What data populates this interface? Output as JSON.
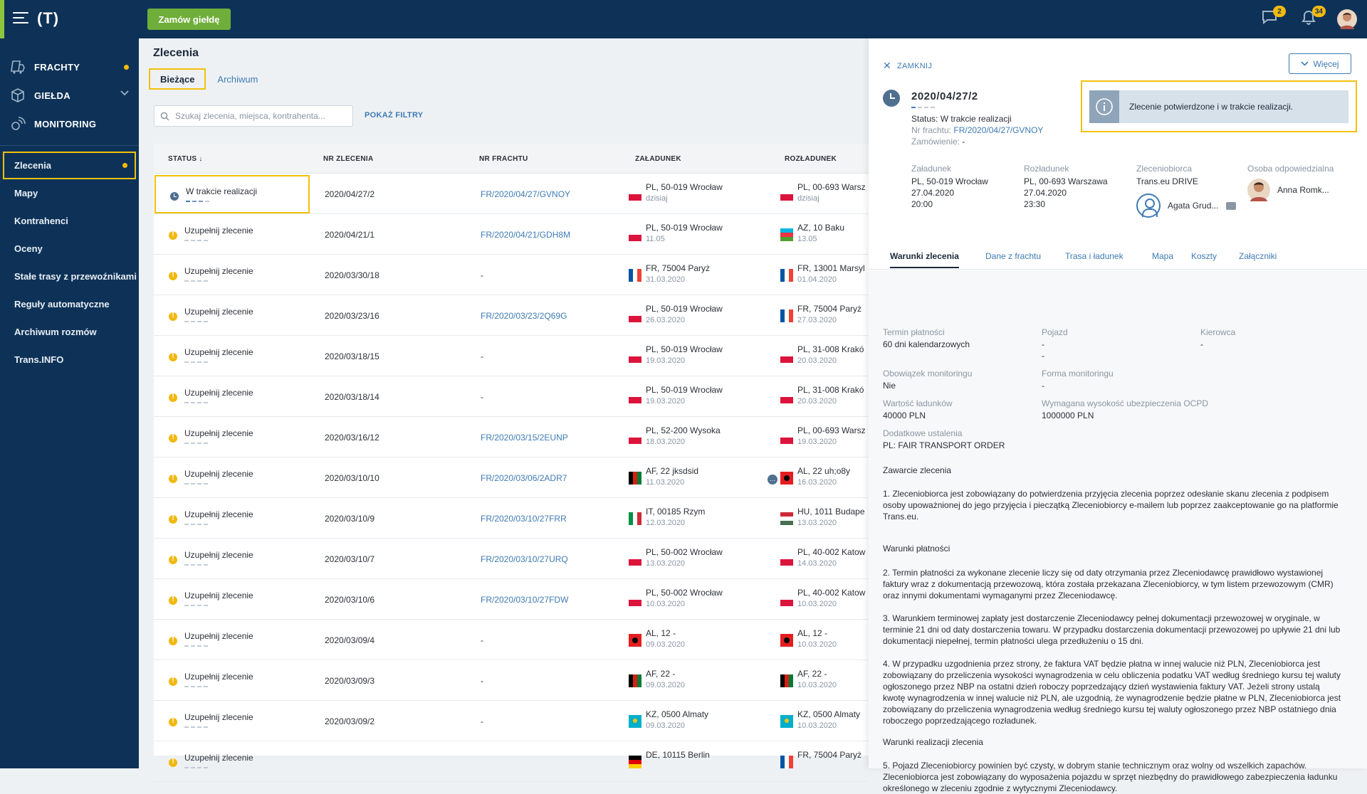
{
  "topbar": {
    "logo": "(T)",
    "order_button": "Zamów giełdę",
    "chat_badge": "2",
    "bell_badge": "34"
  },
  "sidebar": {
    "main": [
      {
        "label": "FRACHTY",
        "icon": "freight-icon",
        "dot": true
      },
      {
        "label": "GIEŁDA",
        "icon": "exchange-box-icon",
        "chevron": true
      },
      {
        "label": "MONITORING",
        "icon": "monitoring-icon"
      }
    ],
    "sub": [
      {
        "label": "Zlecenia",
        "active": true,
        "dot": true
      },
      {
        "label": "Mapy"
      },
      {
        "label": "Kontrahenci"
      },
      {
        "label": "Oceny"
      },
      {
        "label": "Stałe trasy z przewoźnikami"
      },
      {
        "label": "Reguły automatyczne"
      },
      {
        "label": "Archiwum rozmów"
      },
      {
        "label": "Trans.INFO"
      }
    ]
  },
  "main": {
    "title": "Zlecenia",
    "tabs": [
      "Bieżące",
      "Archiwum"
    ],
    "search_placeholder": "Szukaj zlecenia, miejsca, kontrahenta...",
    "filters": "POKAŻ FILTRY",
    "columns": [
      "STATUS ↓",
      "NR ZLECENIA",
      "NR FRACHTU",
      "ZAŁADUNEK",
      "ROZŁADUNEK"
    ],
    "rows": [
      {
        "status": "W trakcie realizacji",
        "type": "progress",
        "nr": "2020/04/27/2",
        "fr": "FR/2020/04/27/GVNOY",
        "ld_flag": "pl",
        "ld1": "PL, 50-019 Wrocław",
        "ld2": "dzisiaj",
        "ud_flag": "pl",
        "ud1": "PL, 00-693 Warsz",
        "ud2": "dzisiaj"
      },
      {
        "status": "Uzupełnij zlecenie",
        "type": "warn",
        "nr": "2020/04/21/1",
        "fr": "FR/2020/04/21/GDH8M",
        "ld_flag": "pl",
        "ld1": "PL, 50-019 Wrocław",
        "ld2": "11.05",
        "ud_flag": "az",
        "ud1": "AZ, 10 Baku",
        "ud2": "13.05"
      },
      {
        "status": "Uzupełnij zlecenie",
        "type": "warn",
        "nr": "2020/03/30/18",
        "fr": "-",
        "ld_flag": "fr",
        "ld1": "FR, 75004 Paryż",
        "ld2": "31.03.2020",
        "ud_flag": "fr",
        "ud1": "FR, 13001 Marsyl",
        "ud2": "01.04.2020"
      },
      {
        "status": "Uzupełnij zlecenie",
        "type": "warn",
        "nr": "2020/03/23/16",
        "fr": "FR/2020/03/23/2Q69G",
        "ld_flag": "pl",
        "ld1": "PL, 50-019 Wrocław",
        "ld2": "26.03.2020",
        "ud_flag": "fr",
        "ud1": "FR, 75004 Paryż",
        "ud2": "27.03.2020"
      },
      {
        "status": "Uzupełnij zlecenie",
        "type": "warn",
        "nr": "2020/03/18/15",
        "fr": "-",
        "ld_flag": "pl",
        "ld1": "PL, 50-019 Wrocław",
        "ld2": "19.03.2020",
        "ud_flag": "pl",
        "ud1": "PL, 31-008 Krakó",
        "ud2": "20.03.2020"
      },
      {
        "status": "Uzupełnij zlecenie",
        "type": "warn",
        "nr": "2020/03/18/14",
        "fr": "-",
        "ld_flag": "pl",
        "ld1": "PL, 50-019 Wrocław",
        "ld2": "19.03.2020",
        "ud_flag": "pl",
        "ud1": "PL, 31-008 Krakó",
        "ud2": "20.03.2020"
      },
      {
        "status": "Uzupełnij zlecenie",
        "type": "warn",
        "nr": "2020/03/16/12",
        "fr": "FR/2020/03/15/2EUNP",
        "ld_flag": "pl",
        "ld1": "PL, 52-200 Wysoka",
        "ld2": "18.03.2020",
        "ud_flag": "pl",
        "ud1": "PL, 00-693 Warsz",
        "ud2": "19.03.2020"
      },
      {
        "status": "Uzupełnij zlecenie",
        "type": "warn",
        "nr": "2020/03/10/10",
        "fr": "FR/2020/03/06/2ADR7",
        "ld_flag": "af",
        "ld1": "AF, 22 jksdsid",
        "ld2": "11.03.2020",
        "ud_flag": "al",
        "ud1": "AL, 22 uh;o8y",
        "ud2": "16.03.2020",
        "chat": true
      },
      {
        "status": "Uzupełnij zlecenie",
        "type": "warn",
        "nr": "2020/03/10/9",
        "fr": "FR/2020/03/10/27FRR",
        "ld_flag": "it",
        "ld1": "IT, 00185 Rzym",
        "ld2": "12.03.2020",
        "ud_flag": "hu",
        "ud1": "HU, 1011 Budape",
        "ud2": "13.03.2020"
      },
      {
        "status": "Uzupełnij zlecenie",
        "type": "warn",
        "nr": "2020/03/10/7",
        "fr": "FR/2020/03/10/27URQ",
        "ld_flag": "pl",
        "ld1": "PL, 50-002 Wrocław",
        "ld2": "13.03.2020",
        "ud_flag": "pl",
        "ud1": "PL, 40-002 Katow",
        "ud2": "14.03.2020"
      },
      {
        "status": "Uzupełnij zlecenie",
        "type": "warn",
        "nr": "2020/03/10/6",
        "fr": "FR/2020/03/10/27FDW",
        "ld_flag": "pl",
        "ld1": "PL, 50-002 Wrocław",
        "ld2": "10.03.2020",
        "ud_flag": "pl",
        "ud1": "PL, 40-002 Katow",
        "ud2": "10.03.2020"
      },
      {
        "status": "Uzupełnij zlecenie",
        "type": "warn",
        "nr": "2020/03/09/4",
        "fr": "-",
        "ld_flag": "al",
        "ld1": "AL, 12 -",
        "ld2": "09.03.2020",
        "ud_flag": "al",
        "ud1": "AL, 12 -",
        "ud2": "10.03.2020"
      },
      {
        "status": "Uzupełnij zlecenie",
        "type": "warn",
        "nr": "2020/03/09/3",
        "fr": "-",
        "ld_flag": "af",
        "ld1": "AF, 22 -",
        "ld2": "09.03.2020",
        "ud_flag": "af",
        "ud1": "AF, 22 -",
        "ud2": "10.03.2020"
      },
      {
        "status": "Uzupełnij zlecenie",
        "type": "warn",
        "nr": "2020/03/09/2",
        "fr": "-",
        "ld_flag": "kz",
        "ld1": "KZ, 0500 Almaty",
        "ld2": "09.03.2020",
        "ud_flag": "kz",
        "ud1": "KZ, 0500 Almaty",
        "ud2": "10.03.2020"
      },
      {
        "status": "Uzupełnij zlecenie",
        "type": "warn",
        "nr": "",
        "fr": "",
        "ld_flag": "de",
        "ld1": "DE, 10115 Berlin",
        "ld2": "",
        "ud_flag": "fr",
        "ud1": "FR, 75004 Paryż",
        "ud2": ""
      }
    ]
  },
  "panel": {
    "close": "ZAMKNIJ",
    "more": "Więcej",
    "id": "2020/04/27/2",
    "status_label": "Status:",
    "status_value": "W trakcie realizacji",
    "freight_label": "Nr frachtu:",
    "freight_value": "FR/2020/04/27/GVNOY",
    "order_label": "Zamówienie:",
    "order_value": "-",
    "info": "Zlecenie potwierdzone i w trakcie realizacji.",
    "loading": {
      "label": "Załadunek",
      "lines": [
        "PL, 50-019 Wrocław",
        "27.04.2020",
        "20:00"
      ]
    },
    "unloading": {
      "label": "Rozładunek",
      "lines": [
        "PL, 00-693 Warszawa",
        "27.04.2020",
        "23:30"
      ]
    },
    "contractor": {
      "label": "Zleceniobiorca",
      "company": "Trans.eu DRIVE",
      "person": "Agata Grud..."
    },
    "responsible": {
      "label": "Osoba odpowiedzialna",
      "person": "Anna Romk..."
    },
    "tabs": [
      "Warunki zlecenia",
      "Dane z frachtu",
      "Trasa i ładunek",
      "Mapa",
      "Koszty",
      "Załączniki"
    ],
    "fields": [
      {
        "label": "Termin płatności",
        "value": "60 dni kalendarzowych"
      },
      {
        "label": "Pojazd",
        "value": "-",
        "value2": "-"
      },
      {
        "label": "Kierowca",
        "value": "-"
      },
      {
        "label": "Obowiązek monitoringu",
        "value": "Nie"
      },
      {
        "label": "Forma monitoringu",
        "value": "-"
      },
      {
        "label": "Wartość ładunków",
        "value": "40000 PLN"
      },
      {
        "label": "Wymagana wysokość ubezpieczenia OCPD",
        "value": "1000000 PLN"
      },
      {
        "label": "Dodatkowe ustalenia",
        "value": "PL: FAIR TRANSPORT ORDER"
      }
    ],
    "sections": {
      "s1": "Zawarcie zlecenia",
      "p1": "1. Zleceniobiorca jest zobowiązany do potwierdzenia przyjęcia zlecenia poprzez odesłanie skanu zlecenia z podpisem osoby upoważnionej do jego przyjęcia i pieczątką Zleceniobiorcy e-mailem lub poprzez zaakceptowanie go na platformie Trans.eu.",
      "s2": "Warunki płatności",
      "p2": "2. Termin płatności za wykonane zlecenie liczy się od daty otrzymania przez Zleceniodawcę prawidłowo wystawionej faktury wraz z dokumentacją przewozową, która została przekazana Zleceniobiorcy, w tym listem przewozowym (CMR) oraz innymi dokumentami wymaganymi przez Zleceniodawcę.",
      "p3": "3. Warunkiem terminowej zapłaty jest dostarczenie Zleceniodawcy pełnej dokumentacji przewozowej w oryginale, w terminie 21 dni od daty dostarczenia towaru. W przypadku dostarczenia dokumentacji przewozowej po upływie 21 dni lub dokumentacji niepełnej, termin płatności ulega przedłużeniu o 15 dni.",
      "p4": "4. W przypadku uzgodnienia przez strony, że faktura VAT będzie płatna w innej walucie niż PLN, Zleceniobiorca jest zobowiązany do przeliczenia wysokości wynagrodzenia w celu obliczenia podatku VAT według średniego kursu tej waluty ogłoszonego przez NBP na ostatni dzień roboczy poprzedzający dzień wystawienia faktury VAT. Jeżeli strony ustalą kwotę wynagrodzenia w innej walucie niż PLN, ale uzgodnią, że wynagrodzenie będzie płatne w PLN, Zleceniobiorca jest zobowiązany do przeliczenia wynagrodzenia według średniego kursu tej waluty ogłoszonego przez NBP ostatniego dnia roboczego poprzedzającego rozładunek.",
      "s3": "Warunki realizacji zlecenia",
      "p5": "5. Pojazd Zleceniobiorcy powinien być czysty, w dobrym stanie technicznym    oraz wolny od wszelkich zapachów. Zleceniobiorca jest zobowiązany do wyposażenia pojazdu w sprzęt niezbędny do prawidłowego zabezpieczenia ładunku określonego w zleceniu zgodnie z wytycznymi Zleceniodawcy."
    }
  }
}
